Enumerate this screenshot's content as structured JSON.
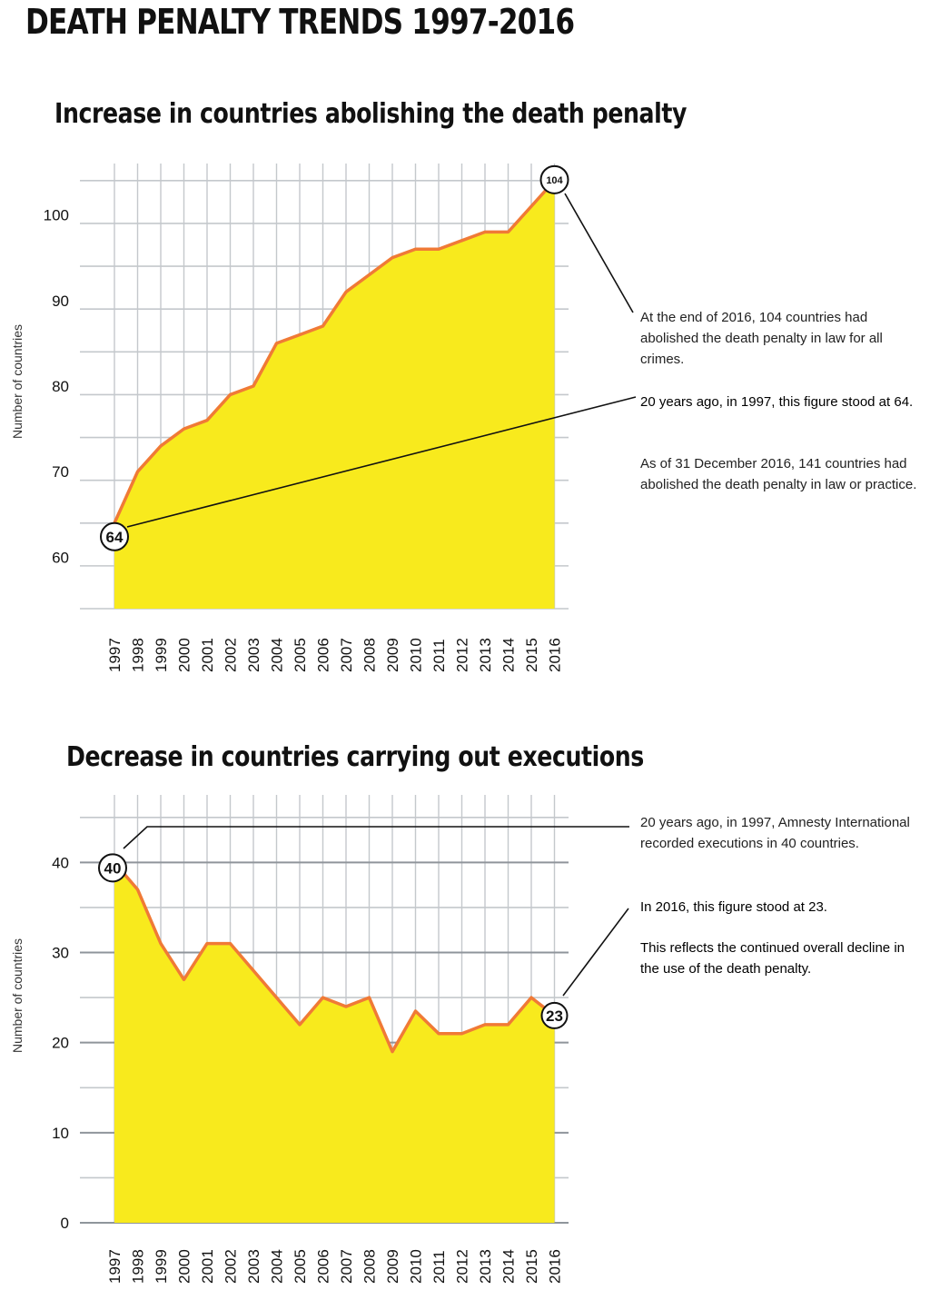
{
  "page_title": "DEATH PENALTY TRENDS 1997-2016",
  "chart_data": [
    {
      "type": "area",
      "title": "Increase in countries abolishing the death penalty",
      "xlabel": "",
      "ylabel": "Number of countries",
      "x": [
        "1997",
        "1998",
        "1999",
        "2000",
        "2001",
        "2002",
        "2003",
        "2004",
        "2005",
        "2006",
        "2007",
        "2008",
        "2009",
        "2010",
        "2011",
        "2012",
        "2013",
        "2014",
        "2015",
        "2016"
      ],
      "values": [
        64,
        70,
        73,
        75,
        76,
        79,
        80,
        85,
        86,
        87,
        91,
        93,
        95,
        96,
        96,
        97,
        98,
        98,
        101,
        104
      ],
      "ylim": [
        55,
        105
      ],
      "yticks": [
        60,
        70,
        80,
        90,
        100
      ],
      "grid": true,
      "colors": {
        "fill": "#f8ea1d",
        "line": "#f07a36",
        "grid": "#9aa0a6"
      },
      "start_marker": "64",
      "end_marker": "104",
      "annotations": [
        "At the end of 2016, 104 countries had abolished the death penalty in law for all crimes.",
        "20 years ago, in 1997, this figure stood at 64.",
        "As of 31 December 2016, 141 countries had abolished the death penalty in law or practice."
      ]
    },
    {
      "type": "area",
      "title": "Decrease in countries carrying out executions",
      "xlabel": "",
      "ylabel": "Number of countries",
      "x": [
        "1997",
        "1998",
        "1999",
        "2000",
        "2001",
        "2002",
        "2003",
        "2004",
        "2005",
        "2006",
        "2007",
        "2008",
        "2009",
        "2010",
        "2011",
        "2012",
        "2013",
        "2014",
        "2015",
        "2016"
      ],
      "values": [
        40,
        37,
        31,
        27,
        31,
        31,
        28,
        25,
        22,
        25,
        24,
        25,
        19,
        23.5,
        21,
        21,
        22,
        22,
        25,
        23
      ],
      "ylim": [
        0,
        45
      ],
      "yticks": [
        0,
        10,
        20,
        30,
        40
      ],
      "grid": true,
      "colors": {
        "fill": "#f8ea1d",
        "line": "#f07a36",
        "grid": "#9aa0a6"
      },
      "start_marker": "40",
      "end_marker": "23",
      "annotations": [
        "20 years ago, in 1997, Amnesty International recorded executions in 40 countries.",
        "In 2016, this figure stood at 23.",
        "This reflects the continued overall decline in the use of the death penalty."
      ]
    }
  ]
}
